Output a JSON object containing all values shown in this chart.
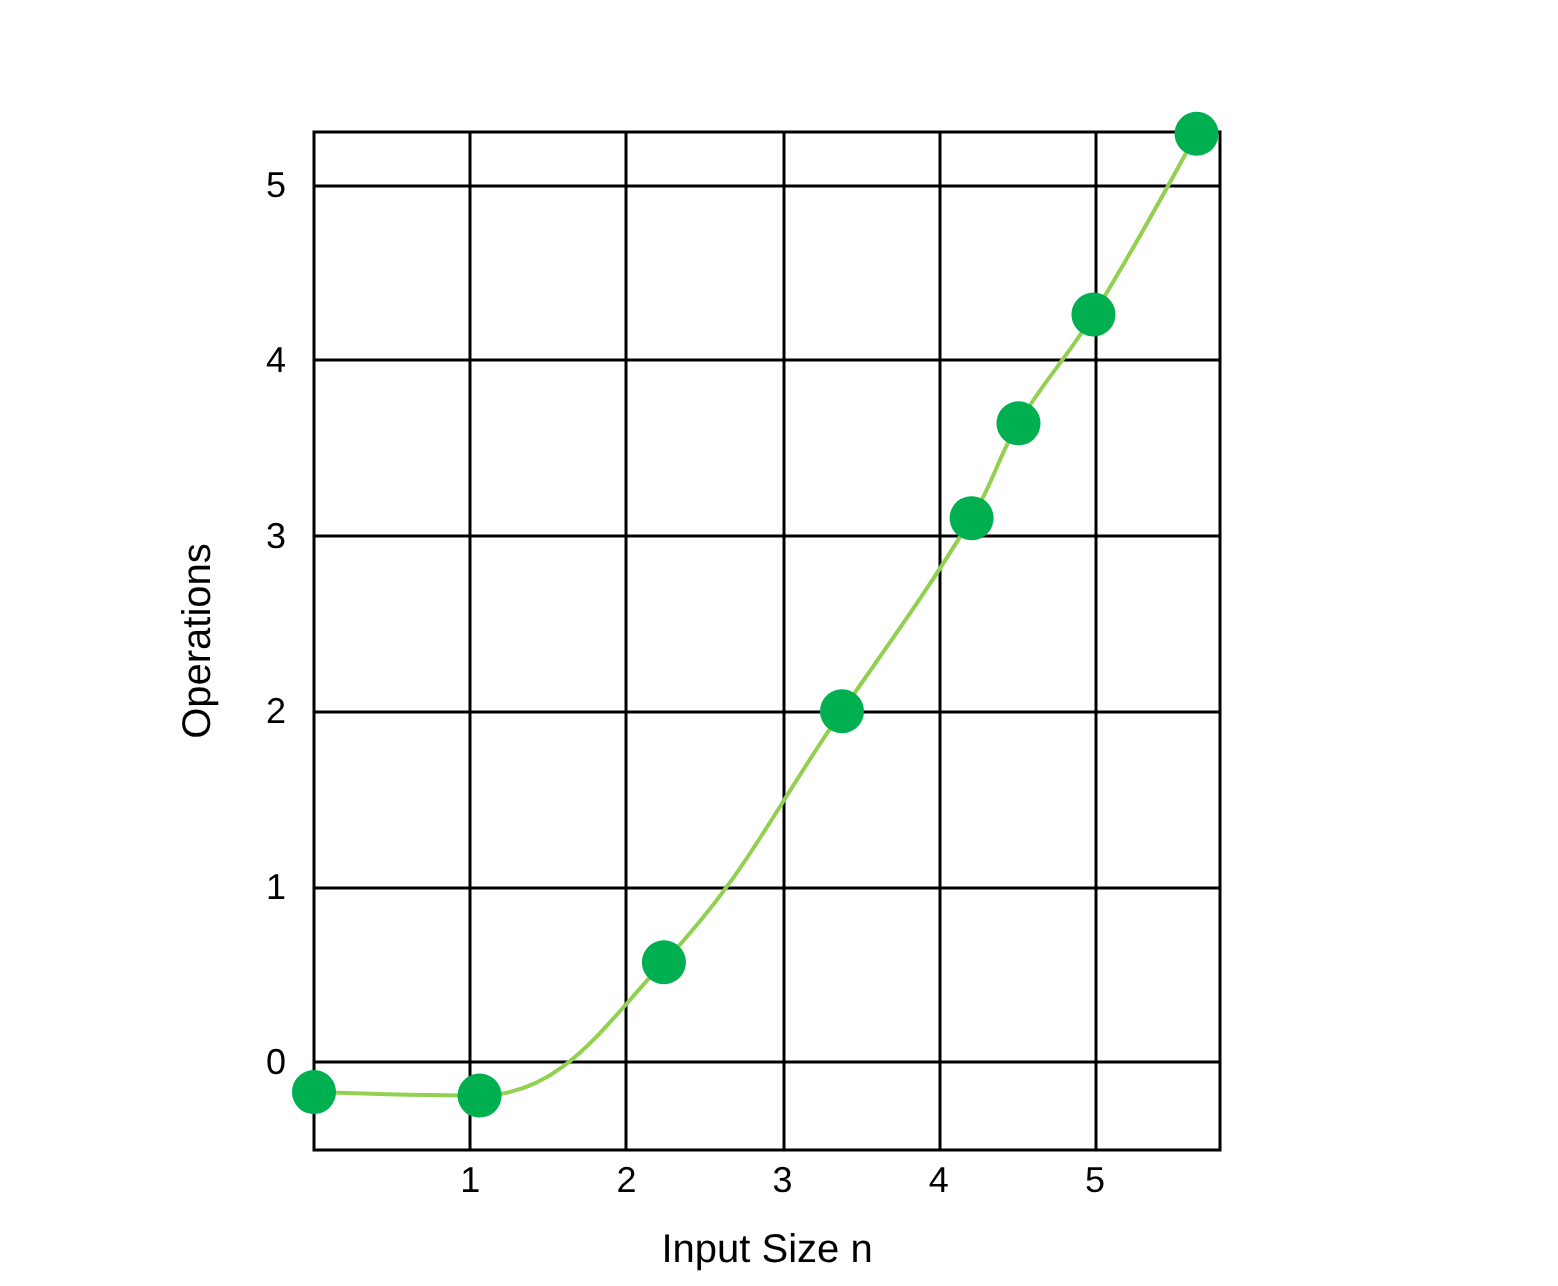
{
  "chart_data": {
    "type": "line",
    "xlabel": "Input Size n",
    "ylabel": "Operations",
    "x": [
      0.0,
      1.06,
      2.24,
      3.38,
      4.21,
      4.51,
      4.99,
      5.65
    ],
    "series": [
      {
        "color": "#92d050",
        "values": [
          -0.17,
          -0.19,
          0.57,
          2.0,
          3.1,
          3.64,
          4.26,
          5.29
        ]
      }
    ],
    "marker": "circle",
    "line_style": "solid",
    "grid": true,
    "xlim": [
      0,
      5.8
    ],
    "xticks": [
      1,
      2,
      3,
      4,
      5
    ],
    "ylim": [
      -0.5,
      5.3
    ],
    "yticks": [
      0,
      1,
      2,
      3,
      4,
      5
    ]
  }
}
